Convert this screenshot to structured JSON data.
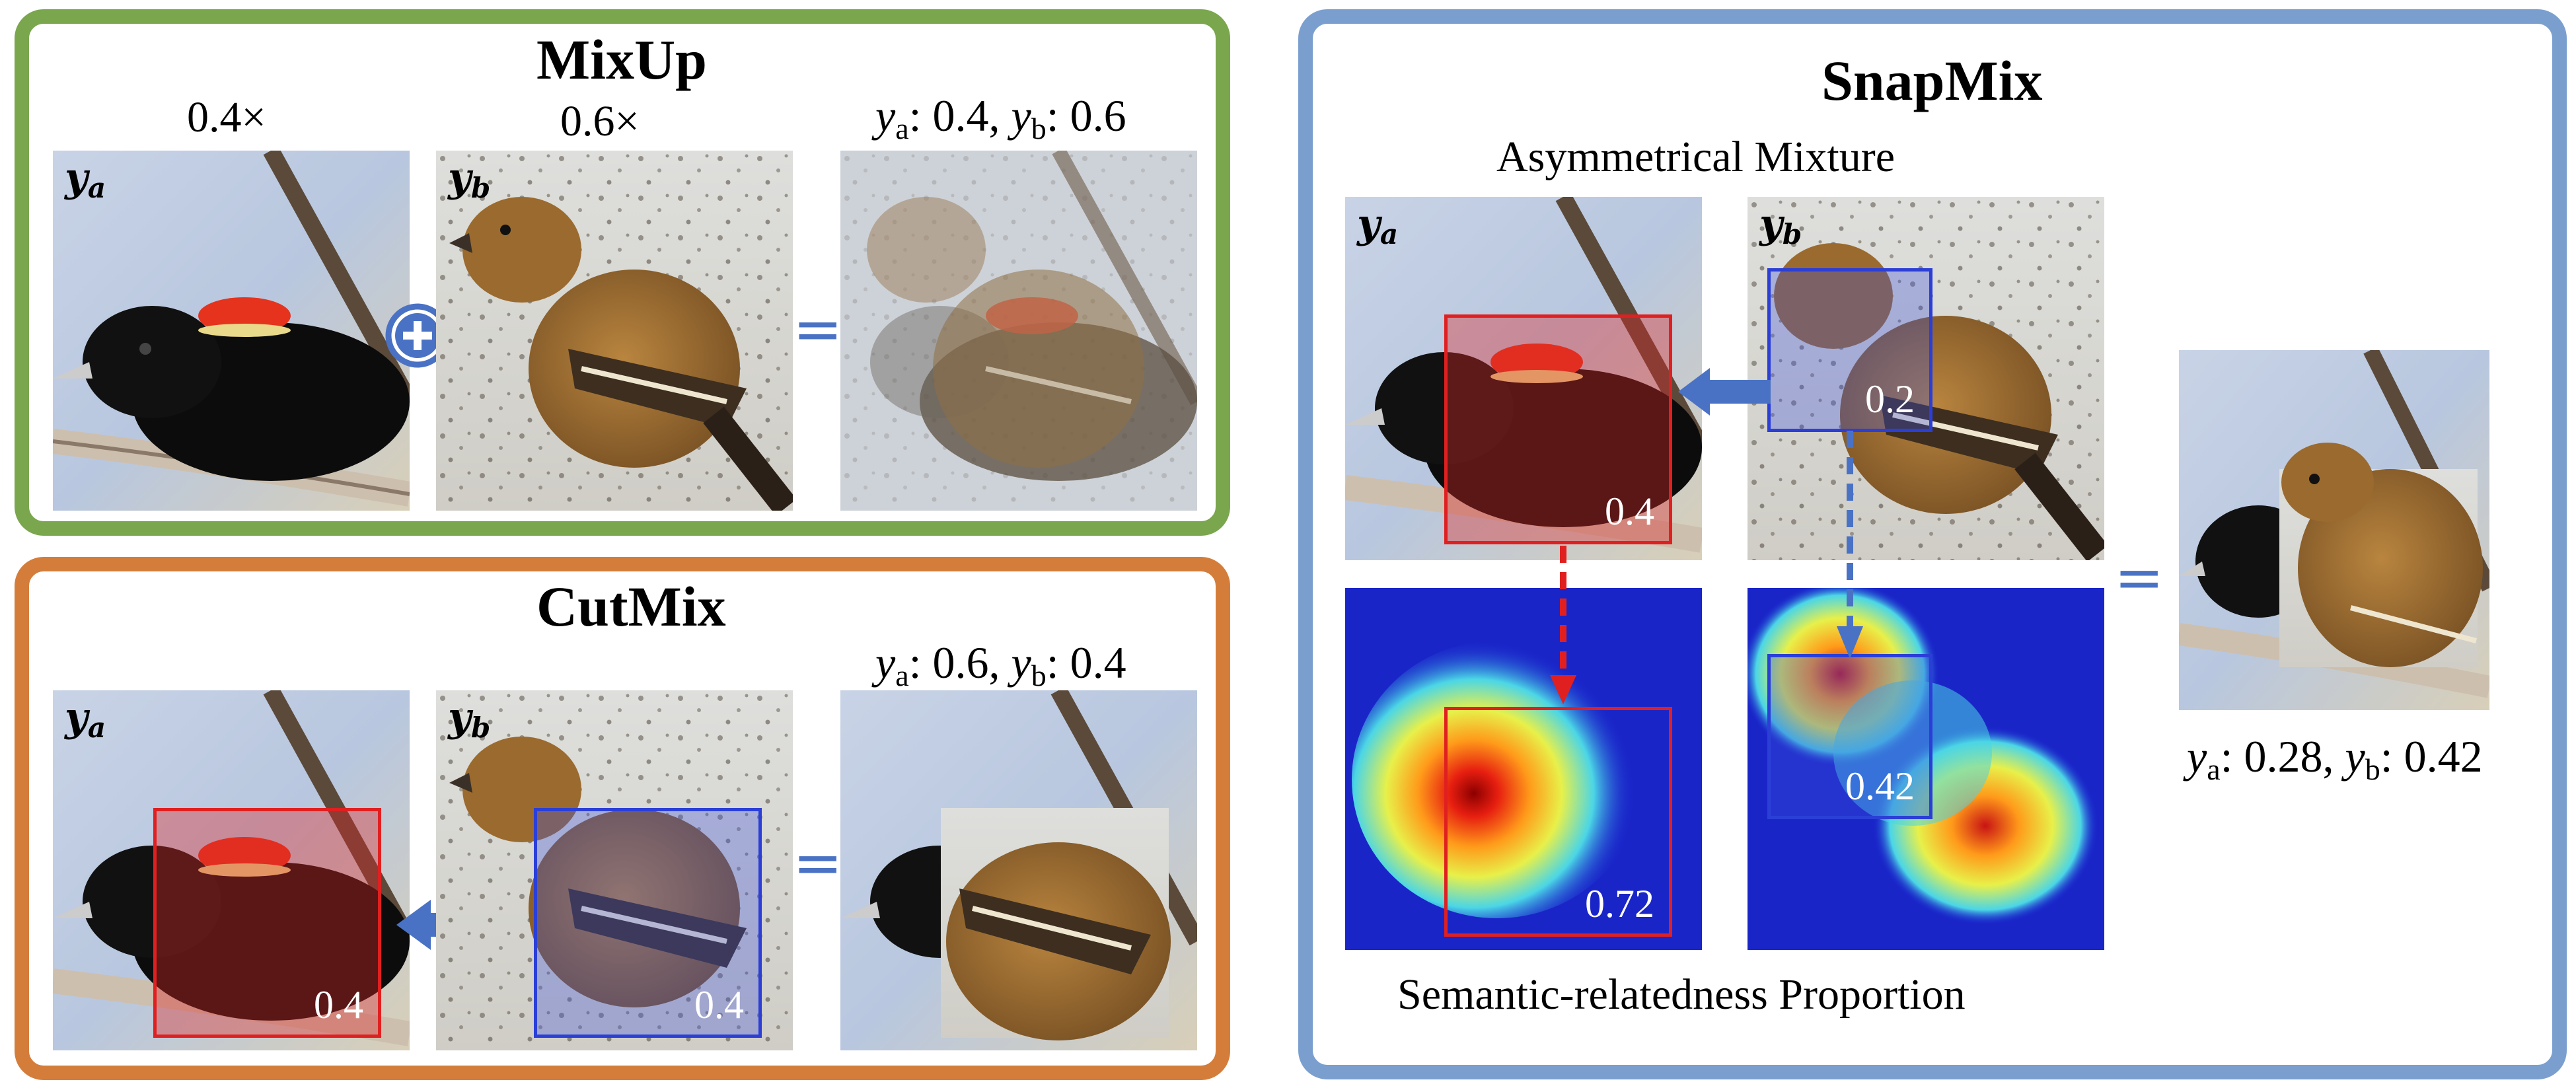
{
  "mixup": {
    "title": "MixUp",
    "coef_a": "0.4×",
    "coef_b": "0.6×",
    "label_a": "y",
    "label_b": "y",
    "sub_a": "a",
    "sub_b": "b",
    "result": {
      "ya_value": "0.4",
      "yb_value": "0.6"
    },
    "plus_symbol": "plus-icon",
    "equals_symbol": "="
  },
  "cutmix": {
    "title": "CutMix",
    "label_a": "y",
    "label_b": "y",
    "sub_a": "a",
    "sub_b": "b",
    "box_a_value": "0.4",
    "box_b_value": "0.4",
    "result": {
      "ya_value": "0.6",
      "yb_value": "0.4"
    },
    "equals_symbol": "="
  },
  "snapmix": {
    "title": "SnapMix",
    "subtitle_top": "Asymmetrical Mixture",
    "subtitle_bottom": "Semantic-relatedness Proportion",
    "label_a": "y",
    "label_b": "y",
    "sub_a": "a",
    "sub_b": "b",
    "box_a_value": "0.4",
    "box_b_value": "0.2",
    "heat_a_value": "0.72",
    "heat_b_value": "0.42",
    "result": {
      "ya_value": "0.28",
      "yb_value": "0.42"
    },
    "equals_symbol": "="
  },
  "colors": {
    "mixup_border": "#7aa64e",
    "cutmix_border": "#d47d3b",
    "snapmix_border": "#7a9fcf",
    "red_box": "#e02020",
    "blue_box": "#2b3fd6",
    "arrow_blue": "#4a72c4"
  }
}
